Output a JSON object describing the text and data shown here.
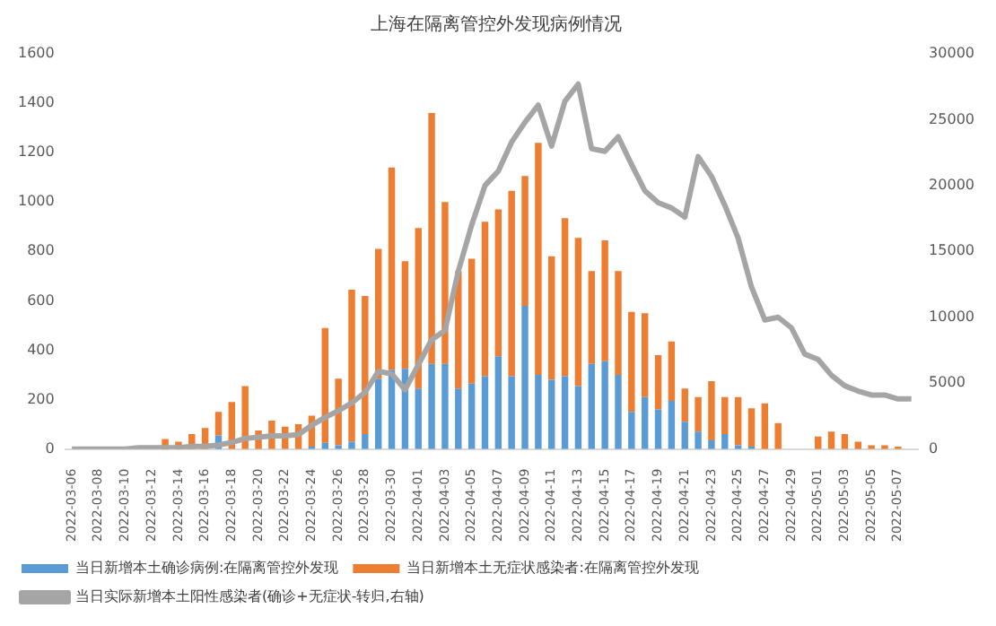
{
  "chart_data": {
    "type": "bar",
    "title": "上海在隔离管控外发现病例情况",
    "stacked": true,
    "legend": "bottom",
    "grid": false,
    "categories": [
      "2022-03-06",
      null,
      "2022-03-08",
      null,
      "2022-03-10",
      null,
      "2022-03-12",
      null,
      "2022-03-14",
      null,
      "2022-03-16",
      null,
      "2022-03-18",
      null,
      "2022-03-20",
      null,
      "2022-03-22",
      null,
      "2022-03-24",
      null,
      "2022-03-26",
      null,
      "2022-03-28",
      null,
      "2022-03-30",
      null,
      "2022-04-01",
      null,
      "2022-04-03",
      null,
      "2022-04-05",
      null,
      "2022-04-07",
      null,
      "2022-04-09",
      null,
      "2022-04-11",
      null,
      "2022-04-13",
      null,
      "2022-04-15",
      null,
      "2022-04-17",
      null,
      "2022-04-19",
      null,
      "2022-04-21",
      null,
      "2022-04-23",
      null,
      "2022-04-25",
      null,
      "2022-04-27",
      null,
      "2022-04-29",
      null,
      "2022-05-01",
      null,
      "2022-05-03",
      null,
      "2022-05-05",
      null,
      "2022-05-07",
      null
    ],
    "ylim": [
      0,
      1600
    ],
    "yticks": [
      0,
      200,
      400,
      600,
      800,
      1000,
      1200,
      1400,
      1600
    ],
    "y2lim": [
      0,
      30000
    ],
    "y2ticks": [
      0,
      5000,
      10000,
      15000,
      20000,
      25000,
      30000
    ],
    "series": [
      {
        "name": "当日新增本土确诊病例:在隔离管控外发现",
        "color": "#5b9bd5",
        "values": [
          0,
          0,
          0,
          0,
          0,
          0,
          0,
          0,
          0,
          0,
          0,
          55,
          0,
          0,
          0,
          0,
          0,
          0,
          10,
          25,
          15,
          30,
          60,
          285,
          320,
          325,
          245,
          345,
          345,
          245,
          265,
          295,
          375,
          295,
          580,
          300,
          280,
          295,
          255,
          345,
          355,
          300,
          150,
          210,
          160,
          195,
          110,
          70,
          35,
          60,
          15,
          10,
          0,
          0,
          0,
          0,
          0,
          0,
          0,
          0,
          0,
          0,
          0,
          0
        ]
      },
      {
        "name": "当日新增本土无症状感染者:在隔离管控外发现",
        "color": "#ed7d31",
        "values": [
          0,
          0,
          0,
          0,
          0,
          0,
          0,
          40,
          30,
          60,
          85,
          95,
          190,
          255,
          75,
          115,
          90,
          100,
          125,
          465,
          270,
          615,
          560,
          525,
          820,
          435,
          650,
          1015,
          655,
          475,
          505,
          625,
          595,
          750,
          525,
          940,
          500,
          640,
          600,
          375,
          490,
          420,
          405,
          340,
          220,
          240,
          135,
          140,
          240,
          150,
          195,
          155,
          185,
          105,
          0,
          0,
          50,
          70,
          60,
          30,
          15,
          15,
          10,
          0
        ]
      },
      {
        "name": "当日实际新增本土阳性感染者(确诊+无症状-转归,右轴)",
        "type": "line",
        "axis": "y2",
        "color": "#a5a5a5",
        "values": [
          0,
          0,
          0,
          0,
          0,
          100,
          100,
          100,
          100,
          200,
          200,
          300,
          500,
          800,
          900,
          1000,
          1000,
          1100,
          1800,
          2400,
          2900,
          3500,
          4300,
          5900,
          5700,
          4500,
          6400,
          8300,
          9000,
          13500,
          17000,
          20000,
          21100,
          23300,
          24800,
          26100,
          23000,
          26400,
          27700,
          22800,
          22600,
          23700,
          21600,
          19600,
          18700,
          18300,
          17600,
          22200,
          20700,
          18500,
          16000,
          12300,
          9800,
          10000,
          9200,
          7200,
          6800,
          5600,
          4800,
          4400,
          4100,
          4100,
          3800,
          3800
        ]
      }
    ]
  }
}
